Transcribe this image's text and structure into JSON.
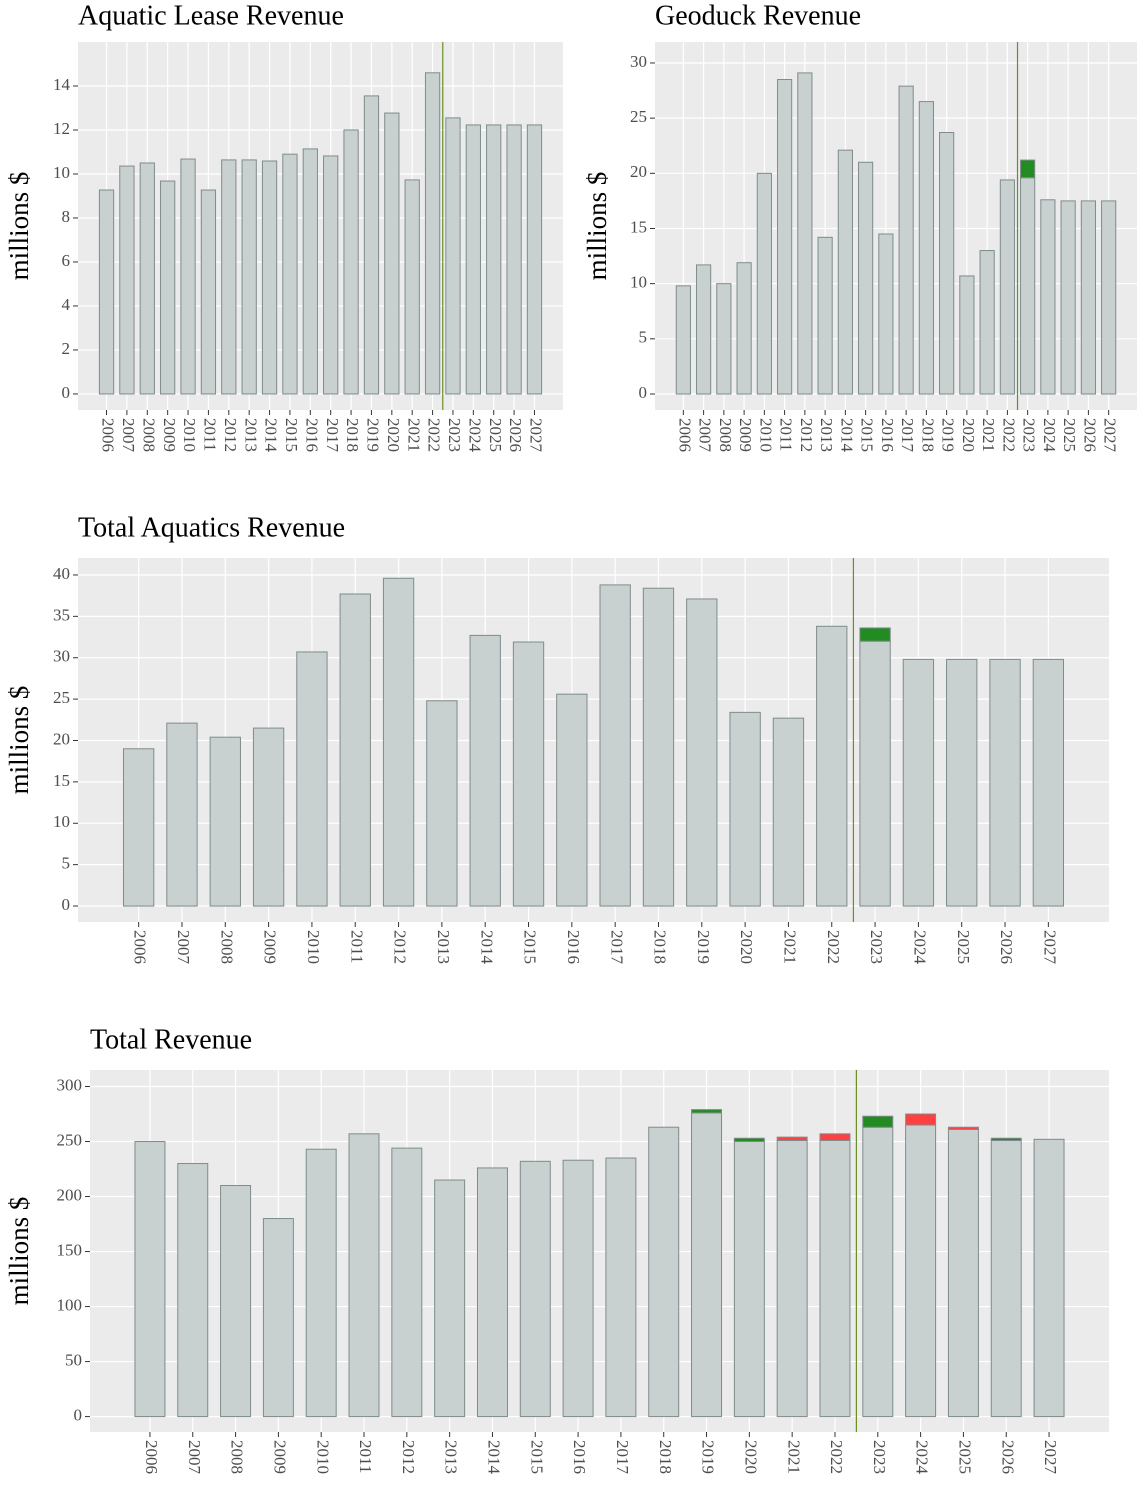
{
  "chart_data": [
    {
      "type": "bar",
      "stacked": true,
      "title": "Aquatic Lease Revenue",
      "ylabel": "millions $",
      "x": [
        2006,
        2007,
        2008,
        2009,
        2010,
        2011,
        2012,
        2013,
        2014,
        2015,
        2016,
        2017,
        2018,
        2019,
        2020,
        2021,
        2022,
        2023,
        2024,
        2025,
        2026,
        2027
      ],
      "series": [
        {
          "color": "#c8d0d0",
          "values": [
            9.27,
            10.36,
            10.5,
            9.68,
            10.68,
            9.27,
            10.64,
            10.64,
            10.59,
            10.9,
            11.14,
            10.82,
            12.0,
            13.55,
            12.77,
            9.73,
            14.6,
            12.55,
            12.23,
            12.23,
            12.23,
            12.23
          ]
        }
      ],
      "xlim": [
        2004.6,
        2028.4
      ],
      "ylim": [
        -0.73,
        16.0
      ],
      "xticks": [
        2006,
        2007,
        2008,
        2009,
        2010,
        2011,
        2012,
        2013,
        2014,
        2015,
        2016,
        2017,
        2018,
        2019,
        2020,
        2021,
        2022,
        2023,
        2024,
        2025,
        2026,
        2027
      ],
      "yticks": [
        0,
        2,
        4,
        6,
        8,
        10,
        12,
        14
      ],
      "grid": true,
      "vline": 2022.5,
      "vline_color": "#6b8e23"
    },
    {
      "type": "bar",
      "stacked": true,
      "title": "Geoduck Revenue",
      "ylabel": "millions $",
      "x": [
        2006,
        2007,
        2008,
        2009,
        2010,
        2011,
        2012,
        2013,
        2014,
        2015,
        2016,
        2017,
        2018,
        2019,
        2020,
        2021,
        2022,
        2023,
        2024,
        2025,
        2026,
        2027
      ],
      "series": [
        {
          "color": "#c8d0d0",
          "values": [
            9.8,
            11.7,
            10.0,
            11.9,
            20.0,
            28.5,
            29.1,
            14.2,
            22.1,
            21.0,
            14.5,
            27.9,
            26.5,
            23.7,
            10.7,
            13.0,
            19.4,
            19.6,
            17.6,
            17.5,
            17.5,
            17.5
          ]
        },
        {
          "color": "#228b22",
          "values": [
            0,
            0,
            0,
            0,
            0,
            0,
            0,
            0,
            0,
            0,
            0,
            0,
            0,
            0,
            0,
            0,
            0,
            1.6,
            0,
            0,
            0,
            0
          ]
        }
      ],
      "xlim": [
        2004.6,
        2028.4
      ],
      "ylim": [
        -1.45,
        31.9
      ],
      "xticks": [
        2006,
        2007,
        2008,
        2009,
        2010,
        2011,
        2012,
        2013,
        2014,
        2015,
        2016,
        2017,
        2018,
        2019,
        2020,
        2021,
        2022,
        2023,
        2024,
        2025,
        2026,
        2027
      ],
      "yticks": [
        0,
        5,
        10,
        15,
        20,
        25,
        30
      ],
      "grid": true,
      "vline": 2022.5,
      "vline_color": "#6b8e23"
    },
    {
      "type": "bar",
      "stacked": true,
      "title": "Total Aquatics Revenue",
      "ylabel": "millions $",
      "x": [
        2006,
        2007,
        2008,
        2009,
        2010,
        2011,
        2012,
        2013,
        2014,
        2015,
        2016,
        2017,
        2018,
        2019,
        2020,
        2021,
        2022,
        2023,
        2024,
        2025,
        2026,
        2027
      ],
      "series": [
        {
          "color": "#c8d0d0",
          "values": [
            19.0,
            22.1,
            20.4,
            21.5,
            30.7,
            37.7,
            39.6,
            24.8,
            32.7,
            31.9,
            25.6,
            38.8,
            38.4,
            37.1,
            23.4,
            22.7,
            33.8,
            32.0,
            29.8,
            29.8,
            29.8,
            29.8
          ]
        },
        {
          "color": "#228b22",
          "values": [
            0,
            0,
            0,
            0,
            0,
            0,
            0,
            0,
            0,
            0,
            0,
            0,
            0,
            0,
            0,
            0,
            0,
            1.6,
            0,
            0,
            0,
            0
          ]
        }
      ],
      "xlim": [
        2004.6,
        2028.4
      ],
      "ylim": [
        -1.93,
        42.05
      ],
      "xticks": [
        2006,
        2007,
        2008,
        2009,
        2010,
        2011,
        2012,
        2013,
        2014,
        2015,
        2016,
        2017,
        2018,
        2019,
        2020,
        2021,
        2022,
        2023,
        2024,
        2025,
        2026,
        2027
      ],
      "yticks": [
        0,
        5,
        10,
        15,
        20,
        25,
        30,
        35,
        40
      ],
      "grid": true,
      "vline": 2022.5,
      "vline_color": "#6b8e23"
    },
    {
      "type": "bar",
      "stacked": true,
      "title": "Total Revenue",
      "ylabel": "millions $",
      "x": [
        2006,
        2007,
        2008,
        2009,
        2010,
        2011,
        2012,
        2013,
        2014,
        2015,
        2016,
        2017,
        2018,
        2019,
        2020,
        2021,
        2022,
        2023,
        2024,
        2025,
        2026,
        2027
      ],
      "series": [
        {
          "color": "#c8d0d0",
          "values": [
            250,
            230,
            210,
            180,
            243,
            257,
            244,
            215,
            226,
            232,
            233,
            235,
            263,
            276,
            250,
            251,
            251,
            263,
            265,
            261,
            251,
            252
          ]
        },
        {
          "color": "#228b22",
          "values": [
            0,
            0,
            0,
            0,
            0,
            0,
            0,
            0,
            0,
            0,
            0,
            0,
            0,
            3,
            3,
            0,
            0,
            10,
            0,
            0,
            2,
            0
          ]
        },
        {
          "color": "#ff4040",
          "values": [
            0,
            0,
            0,
            0,
            0,
            0,
            0,
            0,
            0,
            0,
            0,
            0,
            0,
            0,
            0,
            3,
            6,
            0,
            10,
            2,
            0,
            0
          ]
        }
      ],
      "xlim": [
        2004.6,
        2028.4
      ],
      "ylim": [
        -14,
        315
      ],
      "xticks": [
        2006,
        2007,
        2008,
        2009,
        2010,
        2011,
        2012,
        2013,
        2014,
        2015,
        2016,
        2017,
        2018,
        2019,
        2020,
        2021,
        2022,
        2023,
        2024,
        2025,
        2026,
        2027
      ],
      "yticks": [
        0,
        50,
        100,
        150,
        200,
        250,
        300
      ],
      "grid": true,
      "vline": 2022.5,
      "vline_color": "#6b8e23"
    }
  ]
}
